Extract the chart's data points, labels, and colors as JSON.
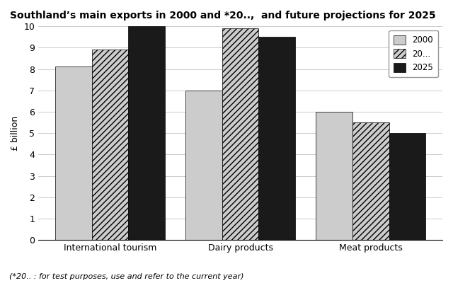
{
  "title": "Southland’s main exports in 2000 and *20..,  and future projections for 2025",
  "footnote": "(*20.. : for test purposes, use and refer to the current year)",
  "categories": [
    "International tourism",
    "Dairy products",
    "Meat products"
  ],
  "series": [
    {
      "label": "2000",
      "values": [
        8.1,
        7.0,
        6.0
      ]
    },
    {
      "label": "20...",
      "values": [
        8.9,
        9.9,
        5.5
      ]
    },
    {
      "label": "2025",
      "values": [
        10.0,
        9.5,
        5.0
      ]
    }
  ],
  "bar_colors": [
    "#cccccc",
    "#cccccc",
    "#1a1a1a"
  ],
  "hatches": [
    "",
    "////",
    ""
  ],
  "hatch_colors": [
    "none",
    "#333333",
    "none"
  ],
  "ylabel": "£ billion",
  "ylim": [
    0,
    10
  ],
  "yticks": [
    0,
    1,
    2,
    3,
    4,
    5,
    6,
    7,
    8,
    9,
    10
  ],
  "bar_width": 0.28,
  "background_color": "#ffffff",
  "legend_labels": [
    "2000",
    "20...",
    "2025"
  ]
}
